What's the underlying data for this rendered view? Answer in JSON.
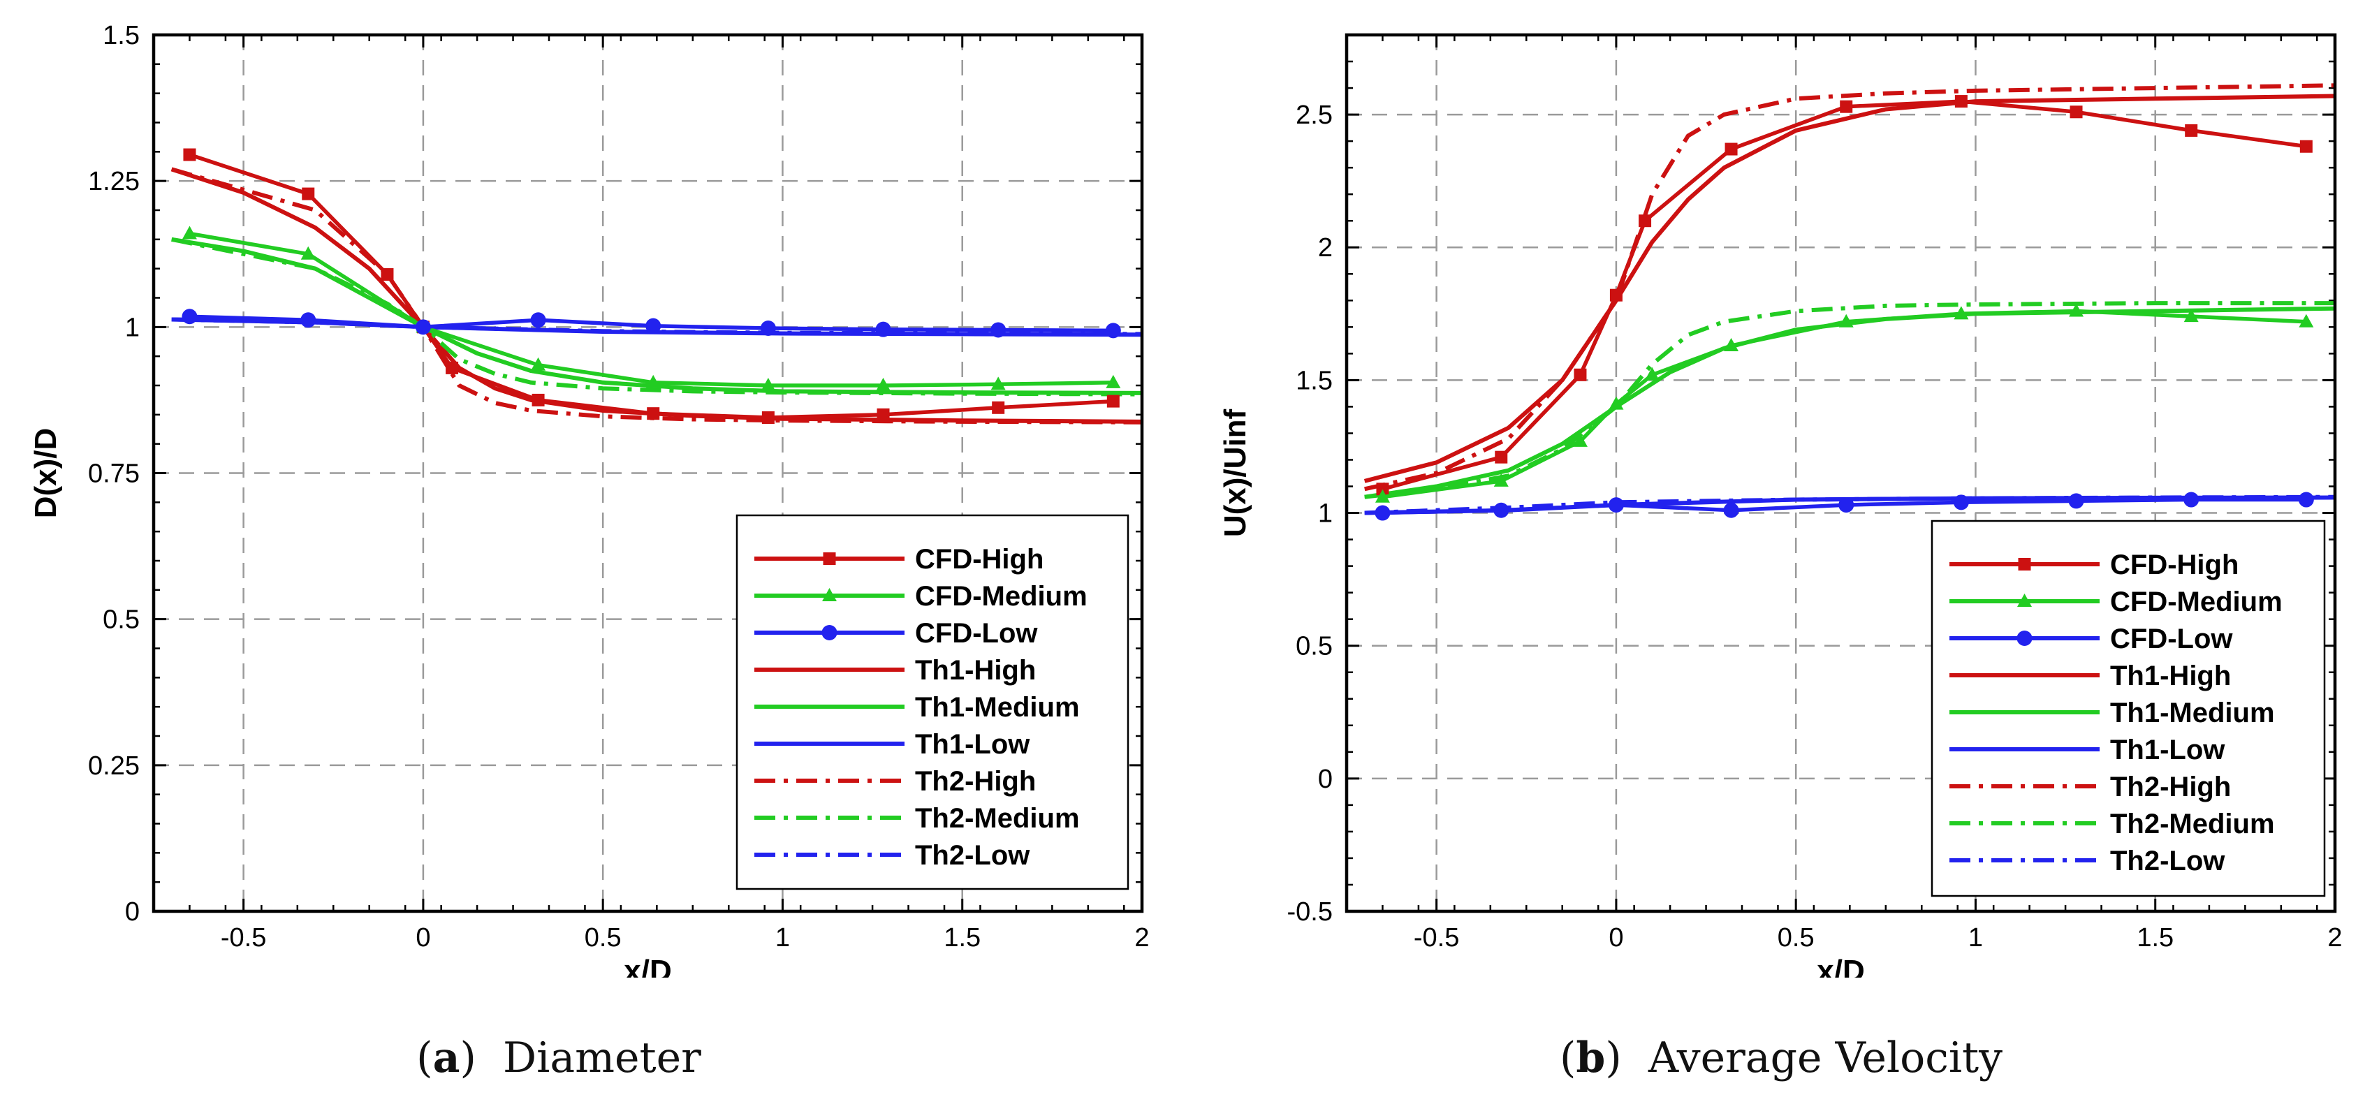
{
  "colors": {
    "high": "#cc1111",
    "medium": "#22cc22",
    "low": "#2222ee"
  },
  "chart_data": [
    {
      "type": "line",
      "panel_label": "a",
      "caption": "Diameter",
      "xlabel": "x/D",
      "ylabel": "D(x)/D",
      "xlim": [
        -0.75,
        2
      ],
      "ylim": [
        0,
        1.5
      ],
      "xticks": [
        -0.5,
        0,
        0.5,
        1,
        1.5,
        2
      ],
      "xtick_labels": [
        "-0.5",
        "0",
        "0.5",
        "1",
        "1.5",
        "2"
      ],
      "yticks": [
        0,
        0.25,
        0.5,
        0.75,
        1,
        1.25,
        1.5
      ],
      "ytick_labels": [
        "0",
        "0.25",
        "0.5",
        "0.75",
        "1",
        "1.25",
        "1.5"
      ],
      "grid": true,
      "legend_position": "bottom-right",
      "series": [
        {
          "name": "CFD-High",
          "color": "#cc1111",
          "style": "solid",
          "marker": "square",
          "x": [
            -0.65,
            -0.32,
            -0.1,
            0,
            0.08,
            0.32,
            0.64,
            0.96,
            1.28,
            1.6,
            1.92
          ],
          "y": [
            1.295,
            1.228,
            1.09,
            1.0,
            0.93,
            0.875,
            0.852,
            0.845,
            0.85,
            0.862,
            0.873
          ]
        },
        {
          "name": "CFD-Medium",
          "color": "#22cc22",
          "style": "solid",
          "marker": "triangle",
          "x": [
            -0.65,
            -0.32,
            0,
            0.32,
            0.64,
            0.96,
            1.28,
            1.6,
            1.92
          ],
          "y": [
            1.16,
            1.125,
            1.0,
            0.935,
            0.905,
            0.9,
            0.9,
            0.902,
            0.905
          ]
        },
        {
          "name": "CFD-Low",
          "color": "#2222ee",
          "style": "solid",
          "marker": "circle",
          "x": [
            -0.65,
            -0.32,
            0,
            0.32,
            0.64,
            0.96,
            1.28,
            1.6,
            1.92
          ],
          "y": [
            1.018,
            1.012,
            1.0,
            1.012,
            1.002,
            0.998,
            0.996,
            0.995,
            0.994
          ]
        },
        {
          "name": "Th1-High",
          "color": "#cc1111",
          "style": "solid",
          "marker": "none",
          "x": [
            -0.7,
            -0.5,
            -0.3,
            -0.15,
            0,
            0.1,
            0.2,
            0.3,
            0.5,
            0.75,
            1.0,
            1.5,
            2.0
          ],
          "y": [
            1.27,
            1.23,
            1.17,
            1.1,
            1.0,
            0.93,
            0.895,
            0.875,
            0.857,
            0.848,
            0.843,
            0.84,
            0.838
          ]
        },
        {
          "name": "Th1-Medium",
          "color": "#22cc22",
          "style": "solid",
          "marker": "none",
          "x": [
            -0.7,
            -0.5,
            -0.3,
            -0.15,
            0,
            0.15,
            0.3,
            0.5,
            0.75,
            1.0,
            1.5,
            2.0
          ],
          "y": [
            1.15,
            1.13,
            1.1,
            1.05,
            1.0,
            0.955,
            0.925,
            0.905,
            0.895,
            0.89,
            0.888,
            0.887
          ]
        },
        {
          "name": "Th1-Low",
          "color": "#2222ee",
          "style": "solid",
          "marker": "none",
          "x": [
            -0.7,
            -0.3,
            0,
            0.5,
            1.0,
            1.5,
            2.0
          ],
          "y": [
            1.013,
            1.008,
            1.0,
            0.992,
            0.989,
            0.988,
            0.987
          ]
        },
        {
          "name": "Th2-High",
          "color": "#cc1111",
          "style": "dashdot",
          "marker": "none",
          "x": [
            -0.7,
            -0.3,
            -0.1,
            0,
            0.1,
            0.2,
            0.3,
            0.5,
            0.75,
            1.0,
            1.5,
            2.0
          ],
          "y": [
            1.27,
            1.2,
            1.09,
            1.0,
            0.9,
            0.87,
            0.857,
            0.847,
            0.842,
            0.84,
            0.838,
            0.837
          ]
        },
        {
          "name": "Th2-Medium",
          "color": "#22cc22",
          "style": "dashdot",
          "marker": "none",
          "x": [
            -0.7,
            -0.3,
            -0.1,
            0,
            0.1,
            0.2,
            0.3,
            0.5,
            0.75,
            1.0,
            1.5,
            2.0
          ],
          "y": [
            1.15,
            1.1,
            1.04,
            1.0,
            0.945,
            0.92,
            0.905,
            0.895,
            0.89,
            0.888,
            0.886,
            0.885
          ]
        },
        {
          "name": "Th2-Low",
          "color": "#2222ee",
          "style": "dashdot",
          "marker": "none",
          "x": [
            -0.7,
            -0.3,
            0,
            0.5,
            1.0,
            1.5,
            2.0
          ],
          "y": [
            1.013,
            1.008,
            1.0,
            0.993,
            0.99,
            0.989,
            0.988
          ]
        }
      ]
    },
    {
      "type": "line",
      "panel_label": "b",
      "caption": "Average Velocity",
      "xlabel": "x/D",
      "ylabel": "U(x)/Uinf",
      "xlim": [
        -0.75,
        2
      ],
      "ylim": [
        -0.5,
        2.8
      ],
      "xticks": [
        -0.5,
        0,
        0.5,
        1,
        1.5,
        2
      ],
      "xtick_labels": [
        "-0.5",
        "0",
        "0.5",
        "1",
        "1.5",
        "2"
      ],
      "yticks": [
        -0.5,
        0,
        0.5,
        1,
        1.5,
        2,
        2.5
      ],
      "ytick_labels": [
        "-0.5",
        "0",
        "0.5",
        "1",
        "1.5",
        "2",
        "2.5"
      ],
      "grid": true,
      "legend_position": "bottom-right",
      "series": [
        {
          "name": "CFD-High",
          "color": "#cc1111",
          "style": "solid",
          "marker": "square",
          "x": [
            -0.65,
            -0.32,
            -0.1,
            0,
            0.08,
            0.32,
            0.64,
            0.96,
            1.28,
            1.6,
            1.92
          ],
          "y": [
            1.09,
            1.21,
            1.52,
            1.82,
            2.1,
            2.37,
            2.53,
            2.55,
            2.51,
            2.44,
            2.38
          ]
        },
        {
          "name": "CFD-Medium",
          "color": "#22cc22",
          "style": "solid",
          "marker": "triangle",
          "x": [
            -0.65,
            -0.32,
            -0.1,
            0,
            0.1,
            0.32,
            0.64,
            0.96,
            1.28,
            1.6,
            1.92
          ],
          "y": [
            1.06,
            1.12,
            1.27,
            1.41,
            1.52,
            1.63,
            1.72,
            1.75,
            1.76,
            1.74,
            1.72
          ]
        },
        {
          "name": "CFD-Low",
          "color": "#2222ee",
          "style": "solid",
          "marker": "circle",
          "x": [
            -0.65,
            -0.32,
            0,
            0.32,
            0.64,
            0.96,
            1.28,
            1.6,
            1.92
          ],
          "y": [
            1.0,
            1.01,
            1.03,
            1.01,
            1.03,
            1.04,
            1.045,
            1.05,
            1.05
          ]
        },
        {
          "name": "Th1-High",
          "color": "#cc1111",
          "style": "solid",
          "marker": "none",
          "x": [
            -0.7,
            -0.5,
            -0.3,
            -0.15,
            0,
            0.1,
            0.2,
            0.3,
            0.5,
            0.75,
            1.0,
            1.5,
            2.0
          ],
          "y": [
            1.12,
            1.19,
            1.32,
            1.5,
            1.8,
            2.02,
            2.18,
            2.3,
            2.44,
            2.52,
            2.55,
            2.56,
            2.57
          ]
        },
        {
          "name": "Th1-Medium",
          "color": "#22cc22",
          "style": "solid",
          "marker": "none",
          "x": [
            -0.7,
            -0.5,
            -0.3,
            -0.15,
            0,
            0.15,
            0.3,
            0.5,
            0.75,
            1.0,
            1.5,
            2.0
          ],
          "y": [
            1.06,
            1.1,
            1.16,
            1.26,
            1.4,
            1.53,
            1.62,
            1.69,
            1.73,
            1.75,
            1.76,
            1.77
          ]
        },
        {
          "name": "Th1-Low",
          "color": "#2222ee",
          "style": "solid",
          "marker": "none",
          "x": [
            -0.7,
            -0.3,
            0,
            0.5,
            1.0,
            1.5,
            2.0
          ],
          "y": [
            1.0,
            1.01,
            1.03,
            1.05,
            1.055,
            1.057,
            1.058
          ]
        },
        {
          "name": "Th2-High",
          "color": "#cc1111",
          "style": "dashdot",
          "marker": "none",
          "x": [
            -0.7,
            -0.5,
            -0.3,
            -0.15,
            0,
            0.05,
            0.1,
            0.2,
            0.3,
            0.5,
            0.75,
            1.0,
            1.5,
            2.0
          ],
          "y": [
            1.09,
            1.15,
            1.28,
            1.5,
            1.8,
            2.0,
            2.2,
            2.42,
            2.5,
            2.56,
            2.58,
            2.59,
            2.6,
            2.61
          ]
        },
        {
          "name": "Th2-Medium",
          "color": "#22cc22",
          "style": "dashdot",
          "marker": "none",
          "x": [
            -0.7,
            -0.5,
            -0.3,
            -0.15,
            0,
            0.1,
            0.2,
            0.3,
            0.5,
            0.75,
            1.0,
            1.5,
            2.0
          ],
          "y": [
            1.06,
            1.09,
            1.14,
            1.24,
            1.4,
            1.56,
            1.67,
            1.72,
            1.76,
            1.78,
            1.785,
            1.79,
            1.79
          ]
        },
        {
          "name": "Th2-Low",
          "color": "#2222ee",
          "style": "dashdot",
          "marker": "none",
          "x": [
            -0.7,
            -0.3,
            0,
            0.5,
            1.0,
            1.5,
            2.0
          ],
          "y": [
            1.0,
            1.02,
            1.04,
            1.05,
            1.055,
            1.058,
            1.06
          ]
        }
      ]
    }
  ]
}
